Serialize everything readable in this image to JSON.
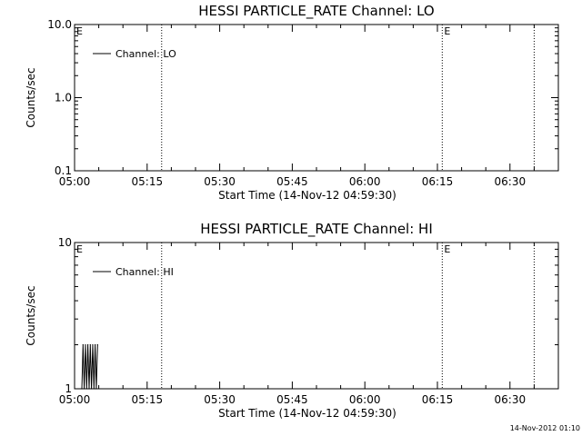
{
  "footer": {
    "timestamp": "14-Nov-2012 01:10"
  },
  "chart_data": [
    {
      "type": "line",
      "title": "HESSI PARTICLE_RATE Channel: LO",
      "xlabel": "Start Time (14-Nov-12 04:59:30)",
      "ylabel": "Counts/sec",
      "yscale": "log",
      "ylim": [
        0.1,
        10.0
      ],
      "yticks": [
        0.1,
        1.0,
        10.0
      ],
      "ytick_labels": [
        "0.1",
        "1.0",
        "10.0"
      ],
      "xlim": [
        "05:00",
        "06:40"
      ],
      "xtick_labels": [
        "05:00",
        "05:15",
        "05:30",
        "05:45",
        "06:00",
        "06:15",
        "06:30"
      ],
      "legend": {
        "label": "Channel: LO",
        "placement": "top-left"
      },
      "event_markers": [
        {
          "time": "05:00",
          "label": "E"
        },
        {
          "time": "06:16",
          "label": "E"
        }
      ],
      "vlines": [
        "05:18",
        "06:16",
        "06:35"
      ],
      "series": [
        {
          "name": "Channel: LO",
          "x": [],
          "y": []
        }
      ]
    },
    {
      "type": "line",
      "title": "HESSI PARTICLE_RATE Channel: HI",
      "xlabel": "Start Time (14-Nov-12 04:59:30)",
      "ylabel": "Counts/sec",
      "yscale": "log",
      "ylim": [
        1,
        10
      ],
      "yticks": [
        1,
        10
      ],
      "ytick_labels": [
        "1",
        "10"
      ],
      "xlim": [
        "05:00",
        "06:40"
      ],
      "xtick_labels": [
        "05:00",
        "05:15",
        "05:30",
        "05:45",
        "06:00",
        "06:15",
        "06:30"
      ],
      "legend": {
        "label": "Channel: HI",
        "placement": "top-left"
      },
      "event_markers": [
        {
          "time": "05:00",
          "label": "E"
        },
        {
          "time": "06:16",
          "label": "E"
        }
      ],
      "vlines": [
        "05:18",
        "06:16",
        "06:35"
      ],
      "series": [
        {
          "name": "Channel: HI",
          "x": [
            "05:01:30",
            "05:01:45",
            "05:02:00",
            "05:02:15",
            "05:02:30",
            "05:02:45",
            "05:03:00",
            "05:03:15",
            "05:03:30",
            "05:03:45",
            "05:04:00",
            "05:04:15",
            "05:04:30",
            "05:04:45"
          ],
          "y": [
            1,
            2,
            1,
            2,
            1,
            2,
            1,
            2,
            1,
            2,
            1,
            2,
            1,
            2
          ]
        }
      ]
    }
  ]
}
